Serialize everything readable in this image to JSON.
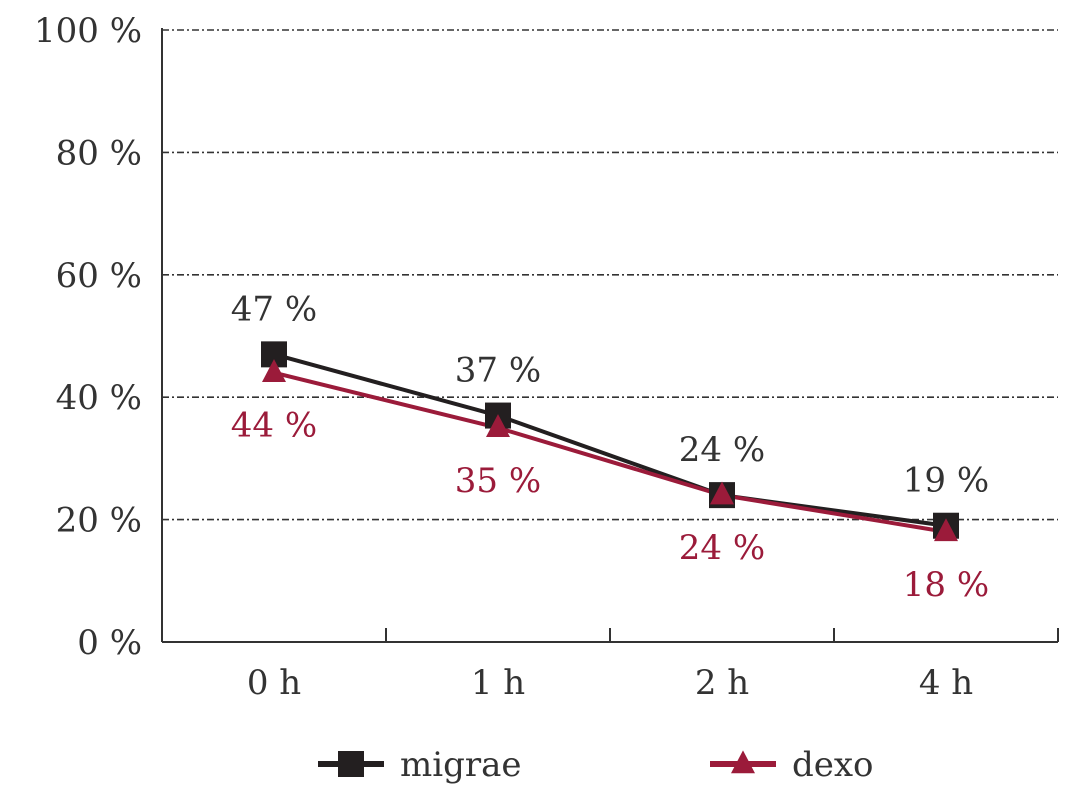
{
  "chart_data": {
    "type": "line",
    "categories": [
      "0 h",
      "1 h",
      "2 h",
      "4 h"
    ],
    "ylim": [
      0,
      100
    ],
    "y_ticks": [
      0,
      20,
      40,
      60,
      80,
      100
    ],
    "y_tick_labels": [
      "0 %",
      "20 %",
      "40 %",
      "60 %",
      "80 %",
      "100 %"
    ],
    "grid": "horizontal dash-dot",
    "legend_position": "bottom",
    "series": [
      {
        "name": "migrae",
        "values": [
          47,
          37,
          24,
          19
        ],
        "labels": [
          "47 %",
          "37 %",
          "24 %",
          "19 %"
        ],
        "color": "#231f20",
        "marker": "square",
        "label_position": "above"
      },
      {
        "name": "dexo",
        "values": [
          44,
          35,
          24,
          18
        ],
        "labels": [
          "44 %",
          "35 %",
          "24 %",
          "18 %"
        ],
        "color": "#9b1b3a",
        "marker": "triangle",
        "label_position": "below"
      }
    ]
  }
}
